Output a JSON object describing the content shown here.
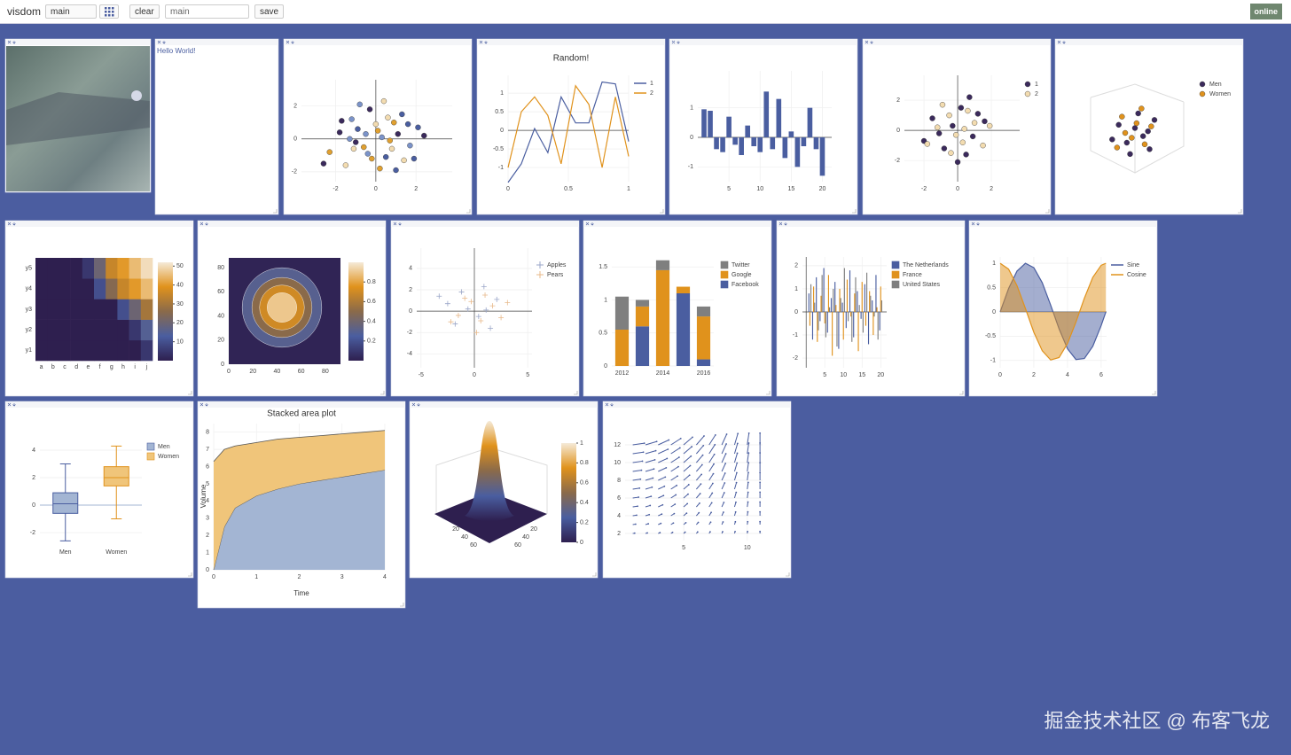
{
  "toolbar": {
    "brand": "visdom",
    "env_select": "main",
    "clear": "clear",
    "filter": "main",
    "save": "save",
    "status": "online"
  },
  "colorscale": [
    "#2e1f4f",
    "#4a5ea0",
    "#8a6a4a",
    "#e0921c",
    "#f5ead8"
  ],
  "panes": [
    {
      "type": "image"
    },
    {
      "type": "text",
      "text": "Hello World!"
    },
    {
      "type": "scatter",
      "xlim": [
        -3.7,
        3.8
      ],
      "ylim": [
        -2.6,
        3.6
      ],
      "xticks": [
        -2,
        0,
        2
      ],
      "yticks": [
        -2,
        0,
        2
      ],
      "palette": [
        "#3b2a5c",
        "#7b93c9",
        "#e0a030",
        "#f3dcb0",
        "#4a5ea0"
      ],
      "x": [
        -1.8,
        -1.2,
        -0.6,
        0,
        0.5,
        1.1,
        1.7,
        -2.3,
        -1.5,
        -0.9,
        -0.3,
        0.3,
        0.9,
        1.4,
        2.1,
        -1.0,
        -0.4,
        0.2,
        0.8,
        1.3,
        -1.7,
        -0.8,
        0.1,
        0.6,
        1.9,
        -2.6,
        -1.3,
        -0.2,
        0.4,
        1.0,
        2.4,
        -0.5,
        0.7,
        -1.1,
        1.6
      ],
      "y": [
        0.4,
        1.2,
        -0.5,
        0.9,
        -1.1,
        0.3,
        -0.4,
        -0.8,
        -1.6,
        0.6,
        1.8,
        0.1,
        1.0,
        -1.3,
        0.7,
        -0.2,
        -0.9,
        -1.8,
        -0.6,
        1.5,
        1.1,
        2.1,
        0.5,
        1.3,
        -1.2,
        -1.5,
        0.0,
        -1.2,
        2.3,
        -1.9,
        0.2,
        0.3,
        -0.1,
        -0.6,
        0.9
      ]
    },
    {
      "type": "line",
      "title": "Random!",
      "x": [
        0,
        0.11,
        0.22,
        0.33,
        0.44,
        0.56,
        0.67,
        0.78,
        0.89,
        1
      ],
      "xlim": [
        0,
        1
      ],
      "ylim": [
        -1.38,
        1.48
      ],
      "xticks": [
        0,
        0.5,
        1
      ],
      "yticks": [
        -1,
        -0.5,
        0,
        0.5,
        1
      ],
      "series": [
        {
          "name": "1",
          "color": "#4a5ea0",
          "values": [
            -1.4,
            -0.9,
            0.05,
            -0.6,
            0.9,
            0.2,
            0.2,
            1.3,
            1.25,
            -0.3
          ]
        },
        {
          "name": "2",
          "color": "#e0921c",
          "values": [
            -1.0,
            0.5,
            0.9,
            0.4,
            -0.9,
            1.2,
            0.7,
            -1.0,
            0.9,
            -0.7
          ]
        }
      ]
    },
    {
      "type": "bar",
      "color": "#4a5ea0",
      "x": [
        1,
        2,
        3,
        4,
        5,
        6,
        7,
        8,
        9,
        10,
        11,
        12,
        13,
        14,
        15,
        16,
        17,
        18,
        19,
        20
      ],
      "xlim": [
        0,
        21.5
      ],
      "ylim": [
        -1.5,
        2.25
      ],
      "xticks": [
        5,
        10,
        15,
        20
      ],
      "yticks": [
        -1,
        0,
        1
      ],
      "values": [
        0.95,
        0.9,
        -0.4,
        -0.5,
        0.7,
        -0.25,
        -0.6,
        0.4,
        -0.3,
        -0.5,
        1.55,
        -0.4,
        1.3,
        -0.7,
        0.2,
        -1.0,
        -0.3,
        1.0,
        -0.4,
        -1.3
      ]
    },
    {
      "type": "scatter",
      "xlim": [
        -3.16,
        3.68
      ],
      "ylim": [
        -3.4,
        3.65
      ],
      "xticks": [
        -2,
        0,
        2
      ],
      "yticks": [
        -2,
        0,
        2
      ],
      "series": [
        {
          "name": "1",
          "color": "#3b2a5c",
          "x": [
            -1.5,
            -0.8,
            0.2,
            0.9,
            1.6,
            -1.1,
            0.5,
            -0.3,
            1.2,
            -2.0,
            0.0,
            0.7
          ],
          "y": [
            0.8,
            -1.2,
            1.5,
            -0.4,
            0.6,
            -0.2,
            -1.6,
            0.3,
            1.1,
            -0.7,
            -2.1,
            2.2
          ]
        },
        {
          "name": "2",
          "color": "#f3dcb0",
          "x": [
            -1.2,
            -0.5,
            0.3,
            1.0,
            -1.8,
            0.6,
            -0.1,
            1.5,
            -0.9,
            0.4,
            1.9,
            -0.4
          ],
          "y": [
            0.2,
            1.0,
            -0.8,
            0.5,
            -0.9,
            1.3,
            -0.3,
            -1.0,
            1.7,
            0.1,
            0.3,
            -1.5
          ]
        }
      ]
    },
    {
      "type": "scatter3d",
      "xlim": [
        -3,
        3
      ],
      "ylim": [
        -3,
        3
      ],
      "series": [
        {
          "name": "Men",
          "color": "#3b2a5c",
          "x": [
            -1,
            -0.5,
            0.2,
            0.8,
            -0.3,
            0.5,
            1.2,
            -1.4,
            0.0,
            0.9
          ],
          "y": [
            0.5,
            -0.6,
            1.2,
            0.1,
            -1.3,
            -0.2,
            0.8,
            -0.4,
            0.3,
            -1.0
          ]
        },
        {
          "name": "Women",
          "color": "#e0921c",
          "x": [
            -0.8,
            0.1,
            0.6,
            -0.2,
            1.0,
            -1.1,
            0.4,
            -0.6
          ],
          "y": [
            1.0,
            0.6,
            -0.7,
            -0.3,
            0.4,
            -0.9,
            1.5,
            0.0
          ]
        }
      ]
    },
    {
      "type": "heatmap",
      "x": [
        "a",
        "b",
        "c",
        "d",
        "e",
        "f",
        "g",
        "h",
        "i",
        "j"
      ],
      "y": [
        "y1",
        "y2",
        "y3",
        "y4",
        "y5"
      ],
      "z": [
        [
          0,
          0,
          0,
          0,
          0,
          0,
          0,
          0,
          0,
          5
        ],
        [
          0,
          0,
          0,
          0,
          0,
          0,
          0,
          0,
          5,
          15
        ],
        [
          0,
          0,
          0,
          0,
          0,
          0,
          0,
          10,
          20,
          30
        ],
        [
          0,
          0,
          0,
          0,
          0,
          10,
          25,
          35,
          40,
          45
        ],
        [
          0,
          0,
          0,
          0,
          5,
          20,
          35,
          40,
          45,
          50
        ]
      ],
      "zlim": [
        0,
        52
      ],
      "zticks": [
        10,
        20,
        30,
        40,
        50
      ]
    },
    {
      "type": "contour",
      "xlim": [
        0,
        92.6
      ],
      "ylim": [
        0,
        88
      ],
      "xticks": [
        0,
        20,
        40,
        60,
        80
      ],
      "yticks": [
        0,
        20,
        40,
        60,
        80
      ],
      "zlim": [
        0,
        1
      ],
      "zticks": [
        0.2,
        0.4,
        0.6,
        0.8
      ]
    },
    {
      "type": "scatter",
      "marker": "cross",
      "xlim": [
        -5.4,
        5.4
      ],
      "ylim": [
        -5.3,
        5.9
      ],
      "xticks": [
        -5,
        0,
        5
      ],
      "yticks": [
        -4,
        -2,
        0,
        2,
        4
      ],
      "series": [
        {
          "name": "Apples",
          "color": "#9aa6c8",
          "x": [
            -2.5,
            -1.2,
            0.4,
            1.5,
            -0.6,
            2.1,
            -3.3,
            0.9,
            -1.8,
            1.1
          ],
          "y": [
            0.7,
            1.8,
            -0.5,
            -1.6,
            0.2,
            1.1,
            1.4,
            2.3,
            -1.2,
            0.1
          ]
        },
        {
          "name": "Pears",
          "color": "#e8b98a",
          "x": [
            -1.5,
            -0.3,
            1.0,
            2.5,
            -2.2,
            0.2,
            1.7,
            -0.9,
            3.1,
            0.6
          ],
          "y": [
            -0.4,
            0.9,
            1.5,
            -0.6,
            -1.0,
            -2.0,
            0.5,
            1.2,
            0.8,
            -0.9
          ]
        }
      ]
    },
    {
      "type": "stacked_bar",
      "categories": [
        "2012",
        null,
        "2014",
        null,
        "2016"
      ],
      "ylim": [
        0,
        1.65
      ],
      "yticks": [
        0,
        0.5,
        1,
        1.5
      ],
      "series": [
        {
          "name": "Twitter",
          "color": "#7f7f7f",
          "values": [
            0.5,
            0.1,
            0.15,
            0,
            0.15
          ]
        },
        {
          "name": "Google",
          "color": "#e0921c",
          "values": [
            0.55,
            0.3,
            1.45,
            0.1,
            0.65
          ]
        },
        {
          "name": "Facebook",
          "color": "#4a5ea0",
          "values": [
            0,
            0.6,
            0,
            1.1,
            0.1
          ]
        }
      ]
    },
    {
      "type": "grouped_bar",
      "x": [
        1,
        2,
        3,
        4,
        5,
        6,
        7,
        8,
        9,
        10,
        11,
        12,
        13,
        14,
        15,
        16,
        17,
        18,
        19,
        20
      ],
      "xlim": [
        -1,
        21.6
      ],
      "ylim": [
        -2.42,
        2.38
      ],
      "xticks": [
        5,
        10,
        15,
        20
      ],
      "yticks": [
        -2,
        -1,
        0,
        1,
        2
      ],
      "series": [
        {
          "name": "The Netherlands",
          "color": "#4a5ea0",
          "values": [
            0.8,
            -1.2,
            1.5,
            -0.4,
            1.9,
            -0.9,
            0.6,
            1.3,
            -1.6,
            0.4,
            -0.7,
            1.8,
            -1.1,
            0.9,
            -0.3,
            1.2,
            -1.4,
            0.5,
            1.6,
            -0.8
          ]
        },
        {
          "name": "France",
          "color": "#e0921c",
          "values": [
            -0.6,
            1.1,
            -1.3,
            0.7,
            -0.5,
            1.6,
            -1.9,
            0.3,
            1.0,
            -1.2,
            1.4,
            -0.2,
            0.8,
            -1.7,
            1.3,
            -0.6,
            0.9,
            -1.0,
            0.2,
            1.1
          ]
        },
        {
          "name": "United States",
          "color": "#7f7f7f",
          "values": [
            1.2,
            0.4,
            -0.8,
            1.6,
            -1.1,
            0.2,
            1.0,
            -1.5,
            0.6,
            1.9,
            -0.4,
            -1.3,
            1.5,
            0.3,
            -0.9,
            1.7,
            0.7,
            -0.2,
            -1.2,
            0.5
          ]
        }
      ]
    },
    {
      "type": "area",
      "x": [
        0,
        0.5,
        1,
        1.5,
        2,
        2.5,
        3,
        3.5,
        4,
        4.5,
        5,
        5.5,
        6,
        6.28
      ],
      "xlim": [
        0,
        6.32
      ],
      "ylim": [
        -1.15,
        1.13
      ],
      "xticks": [
        0,
        2,
        4,
        6
      ],
      "yticks": [
        -1,
        -0.5,
        0,
        0.5,
        1
      ],
      "series": [
        {
          "name": "Sine",
          "color": "#4a5ea0",
          "values": [
            0,
            0.48,
            0.84,
            1.0,
            0.91,
            0.6,
            0.14,
            -0.35,
            -0.76,
            -0.98,
            -0.96,
            -0.71,
            -0.28,
            0
          ]
        },
        {
          "name": "Cosine",
          "color": "#e0921c",
          "values": [
            1,
            0.88,
            0.54,
            0.07,
            -0.42,
            -0.8,
            -0.99,
            -0.94,
            -0.65,
            -0.21,
            0.28,
            0.71,
            0.96,
            1
          ]
        }
      ]
    },
    {
      "type": "box",
      "ylim": [
        -2.9,
        4.84
      ],
      "yticks": [
        -2,
        0,
        2,
        4
      ],
      "series": [
        {
          "name": "Men",
          "color": "#4a5ea0",
          "fill": "#a3b5d3",
          "min": -2.6,
          "q1": -0.6,
          "median": 0.1,
          "q3": 0.9,
          "max": 3.0
        },
        {
          "name": "Women",
          "color": "#e0921c",
          "fill": "#f0c57a",
          "min": -1,
          "q1": 1.4,
          "median": 2.0,
          "q3": 2.8,
          "max": 4.3
        }
      ]
    },
    {
      "type": "stacked_area",
      "title": "Stacked area plot",
      "xlabel": "Time",
      "ylabel": "Volume",
      "x": [
        0,
        0.25,
        0.5,
        1,
        1.5,
        2,
        2.5,
        3,
        3.5,
        4
      ],
      "xlim": [
        0,
        4
      ],
      "ylim": [
        0,
        8.5
      ],
      "xticks": [
        0,
        1,
        2,
        3,
        4
      ],
      "yticks": [
        0,
        1,
        2,
        3,
        4,
        5,
        6,
        7,
        8
      ],
      "series": [
        {
          "color": "#a3b5d3",
          "values": [
            0,
            2.5,
            3.6,
            4.3,
            4.7,
            5.0,
            5.2,
            5.4,
            5.6,
            5.8
          ]
        },
        {
          "color": "#f0c57a",
          "values": [
            6.3,
            4.5,
            3.6,
            3.1,
            2.9,
            2.7,
            2.6,
            2.5,
            2.4,
            2.3
          ]
        }
      ]
    },
    {
      "type": "surface",
      "xticks": [
        20,
        40,
        60
      ],
      "yticks": [
        20,
        40,
        60
      ],
      "zlim": [
        0,
        1
      ],
      "zticks": [
        0,
        0.2,
        0.4,
        0.6,
        0.8,
        1
      ]
    },
    {
      "type": "quiver",
      "xlim": [
        0.4,
        11.2
      ],
      "ylim": [
        1.2,
        12.7
      ],
      "xticks": [
        5,
        10
      ],
      "yticks": [
        2,
        4,
        6,
        8,
        10,
        12
      ]
    }
  ],
  "watermark": "掘金技术社区 @ 布客飞龙"
}
